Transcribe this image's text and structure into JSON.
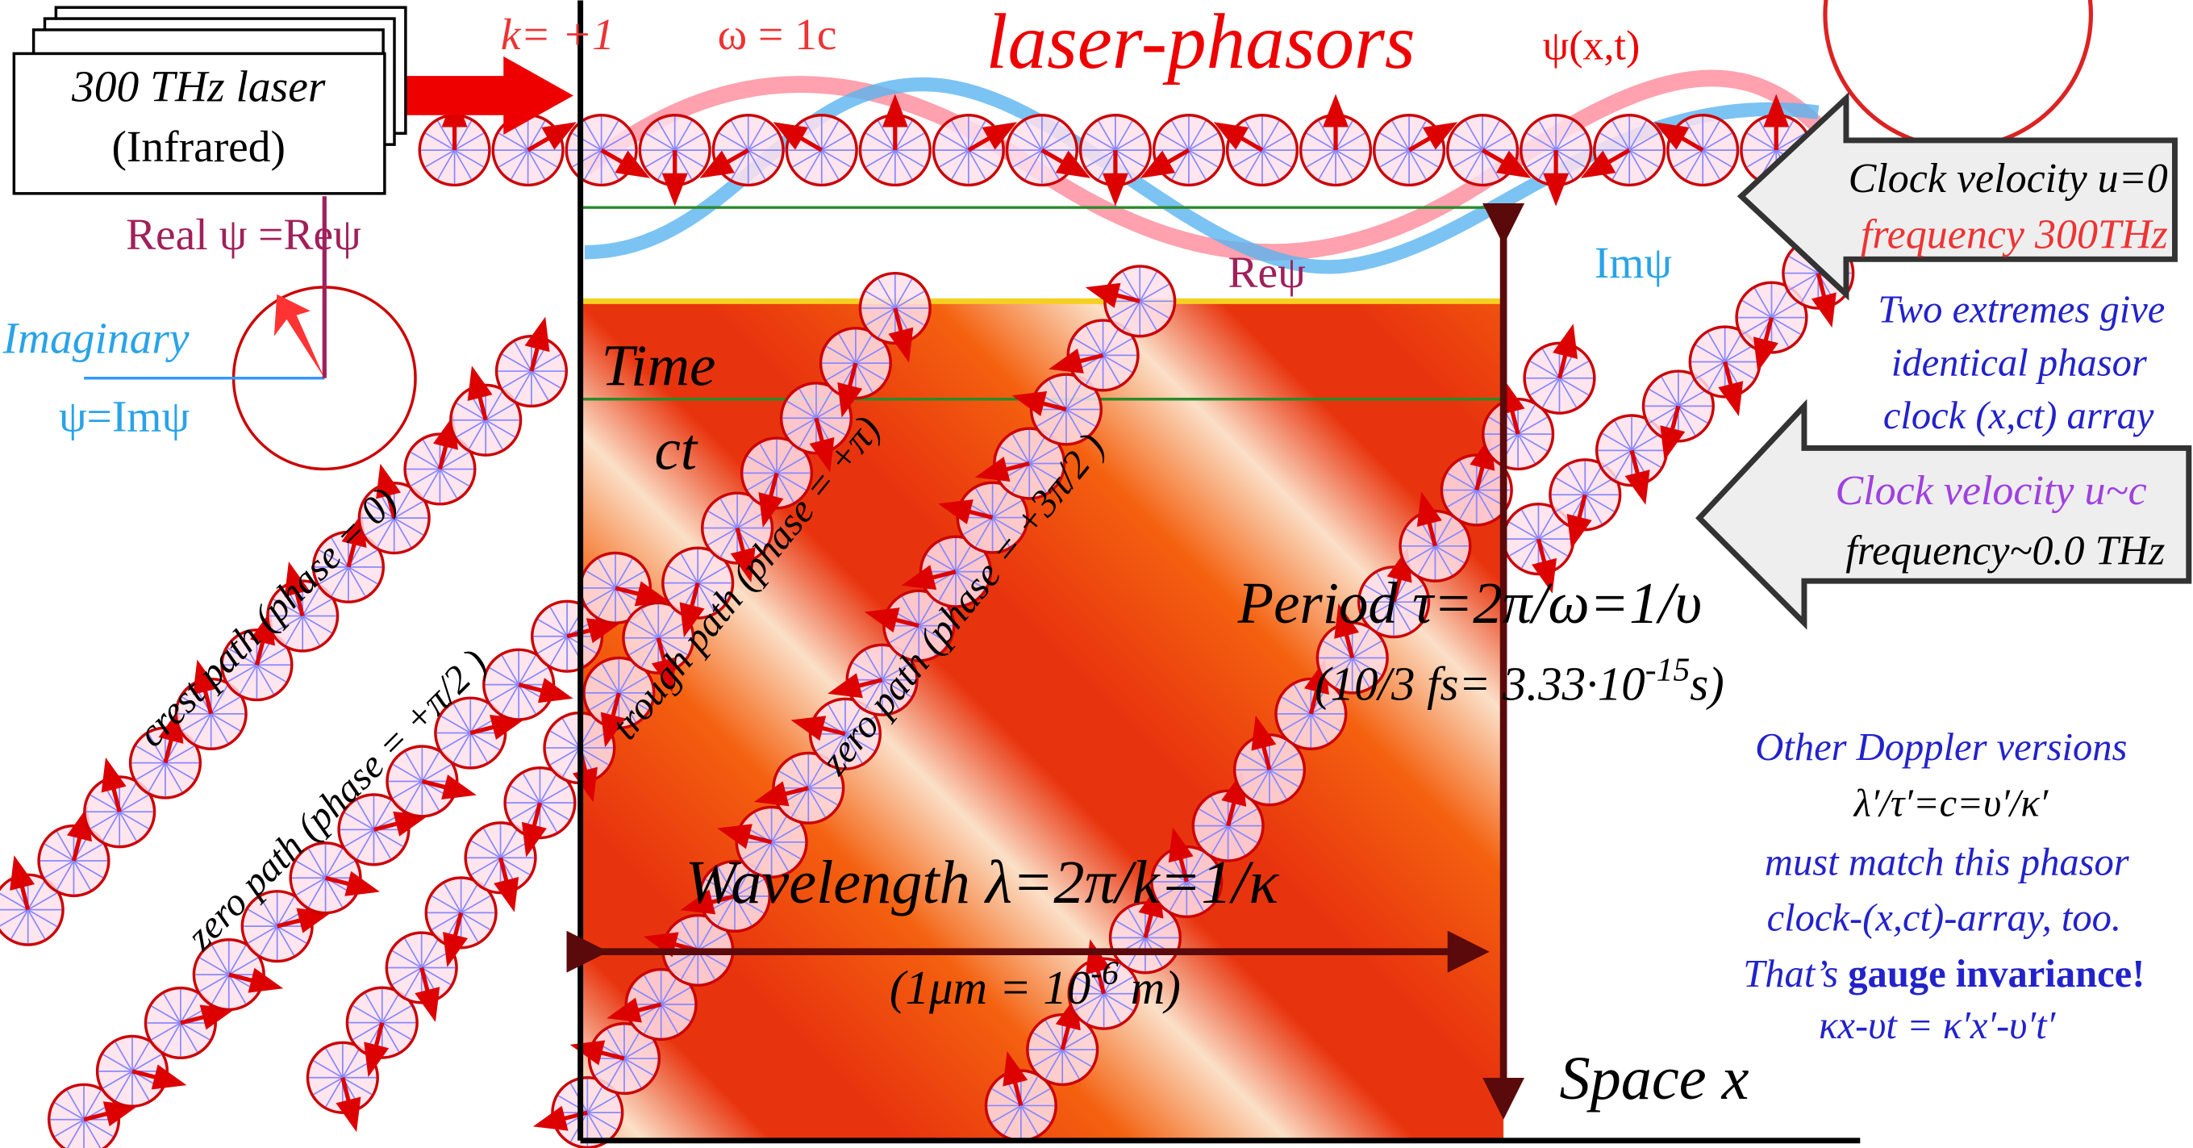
{
  "laser": {
    "line1": "300 THz laser",
    "line2": "(Infrared)"
  },
  "header": {
    "k": "k= +1",
    "omega": "ω = 1c",
    "title": "laser-phasors",
    "psi": "ψ(x,t)"
  },
  "legend": {
    "real": "Real ψ =Reψ",
    "imaginary": "Imaginary",
    "imag_eq": "ψ=Imψ",
    "re_label": "Reψ",
    "im_label": "Imψ"
  },
  "axes": {
    "time": "Time",
    "ct": "ct",
    "space": "Space x"
  },
  "paths": {
    "crest": "crest path (phase = 0)",
    "zero1": "zero path (phase = +π/2 )",
    "trough": "trough path (phase = +π)",
    "zero2": "zero path (phase = +3π/2 )"
  },
  "right": {
    "clock1": "Clock velocity u=0",
    "freq1": "frequency 300THz",
    "ext1": "Two extremes give",
    "ext2": "identical phasor",
    "ext3": "clock (x,ct) array",
    "clock2": "Clock velocity u~c",
    "freq2": "frequency~0.0 THz"
  },
  "period": {
    "label": "Period τ=2π/ω=1/υ",
    "note": [
      "(10/3 fs= 3.33·10",
      "-15",
      "s)"
    ]
  },
  "wavelength": {
    "label": "Wavelength λ=2π/k=1/κ",
    "note": [
      "(1μm = 10",
      "-6",
      " m)"
    ]
  },
  "doppler": {
    "l1": "Other Doppler versions",
    "l2": "λ′/τ′=c=υ′/κ′",
    "l3": "must match this phasor",
    "l4": "clock-(x,ct)-array, too.",
    "l5a": "That’s ",
    "l5b": "gauge invariance!",
    "l6": "κx-υt = κ′x′-υ′t′"
  }
}
